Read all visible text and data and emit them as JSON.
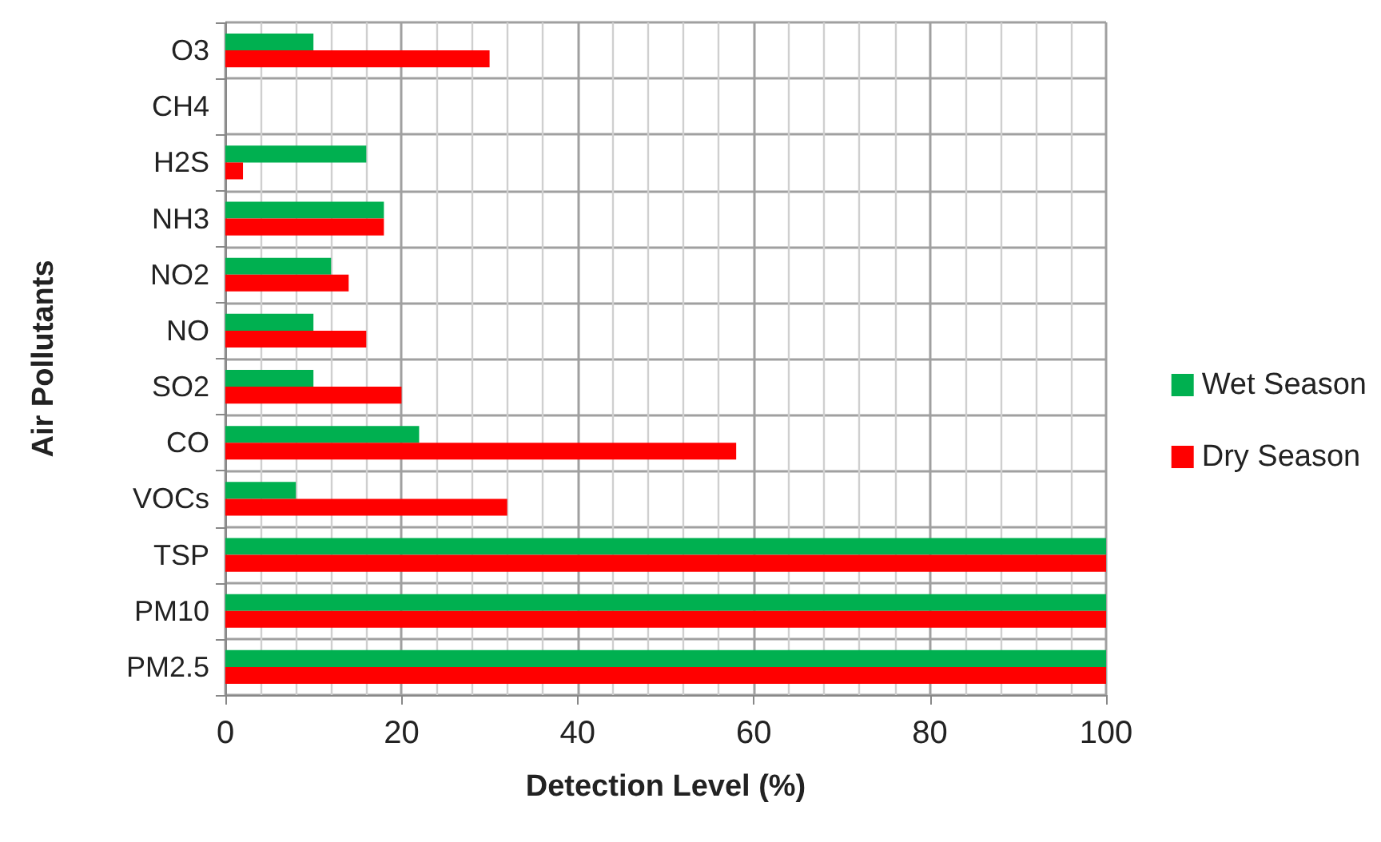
{
  "chart_data": {
    "type": "bar",
    "orientation": "horizontal",
    "xlabel": "Detection Level (%)",
    "ylabel": "Air Pollutants",
    "categories": [
      "O3",
      "CH4",
      "H2S",
      "NH3",
      "NO2",
      "NO",
      "SO2",
      "CO",
      "VOCs",
      "TSP",
      "PM10",
      "PM2.5"
    ],
    "series": [
      {
        "name": "Wet Season",
        "color": "#00b050",
        "values": [
          10,
          0,
          16,
          18,
          12,
          10,
          10,
          22,
          8,
          100,
          100,
          100
        ]
      },
      {
        "name": "Dry Season",
        "color": "#ff0000",
        "values": [
          30,
          0,
          2,
          18,
          14,
          16,
          20,
          58,
          32,
          100,
          100,
          100
        ]
      }
    ],
    "xlim": [
      0,
      100
    ],
    "xticks": [
      0,
      20,
      40,
      60,
      80,
      100
    ],
    "grid": true,
    "legend": "right"
  }
}
